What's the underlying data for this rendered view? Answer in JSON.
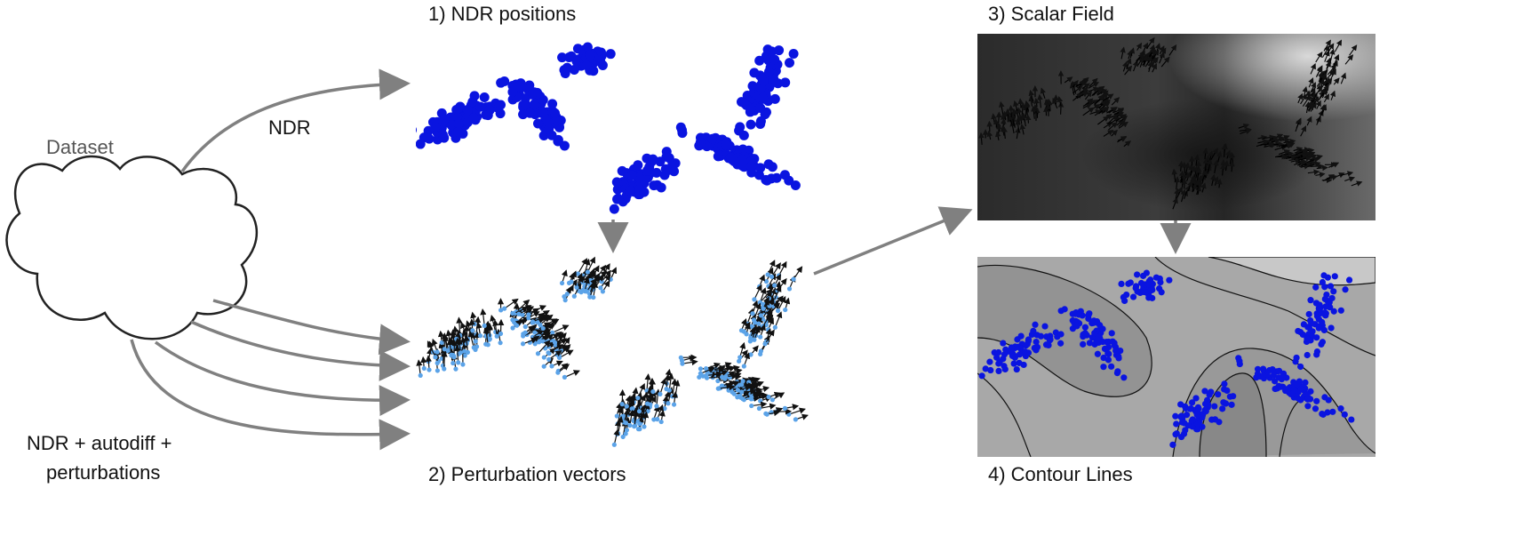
{
  "source_label": "Dataset",
  "arrows": {
    "top_label": "NDR",
    "bottom_label_line1": "NDR + autodiff +",
    "bottom_label_line2": "perturbations"
  },
  "panels": {
    "positions_title": "1) NDR positions",
    "vectors_title": "2) Perturbation vectors",
    "scalar_title": "3) Scalar Field",
    "contour_title": "4) Contour Lines"
  },
  "colors": {
    "point": "#0a14e0",
    "vector_point": "#5ba3e8",
    "arrow": "#808080",
    "outline": "#222222"
  }
}
